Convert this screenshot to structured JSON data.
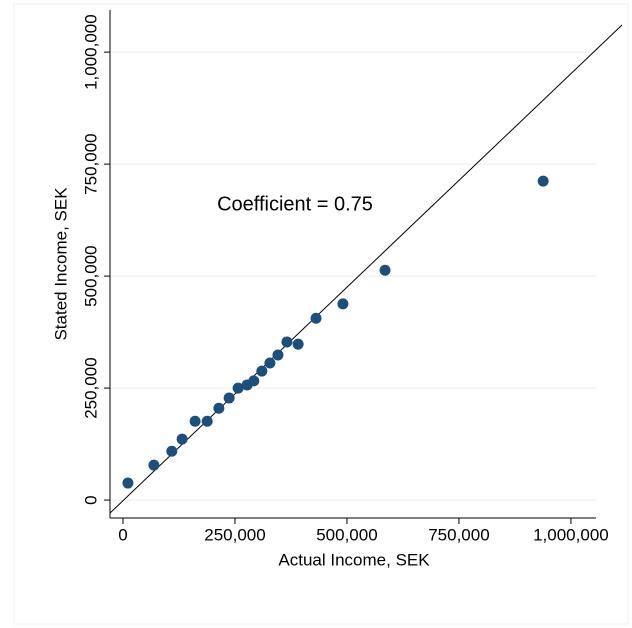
{
  "chart_data": {
    "type": "scatter",
    "x_label": "Actual Income, SEK",
    "y_label": "Stated Income, SEK",
    "annotation": "Coefficient = 0.75",
    "color": "#1f4e79",
    "grid": true,
    "x": [
      11000,
      69000,
      109000,
      132000,
      161000,
      188000,
      214000,
      237000,
      257000,
      277000,
      292000,
      310000,
      328000,
      346000,
      366000,
      391000,
      431000,
      491000,
      585000,
      938000
    ],
    "values": [
      38000,
      78000,
      109000,
      136000,
      176000,
      176000,
      205000,
      228000,
      250000,
      257000,
      266000,
      288000,
      306000,
      324000,
      353000,
      348000,
      406000,
      438000,
      513000,
      712000
    ],
    "xlim": [
      -29000,
      1056000
    ],
    "ylim": [
      -40000,
      1094000
    ],
    "xticks": [
      0,
      {
        "value": 250000,
        "label": "250,000"
      },
      {
        "value": 500000,
        "label": "500,000"
      },
      {
        "value": 750000,
        "label": "750,000"
      },
      {
        "value": 1000000,
        "label": "1,000,000"
      }
    ],
    "yticks": [
      0,
      {
        "value": 250000,
        "label": "250,000"
      },
      {
        "value": 500000,
        "label": "500,000"
      },
      {
        "value": 750000,
        "label": "750,000"
      },
      {
        "value": 1000000,
        "label": "1,000,000"
      }
    ]
  }
}
